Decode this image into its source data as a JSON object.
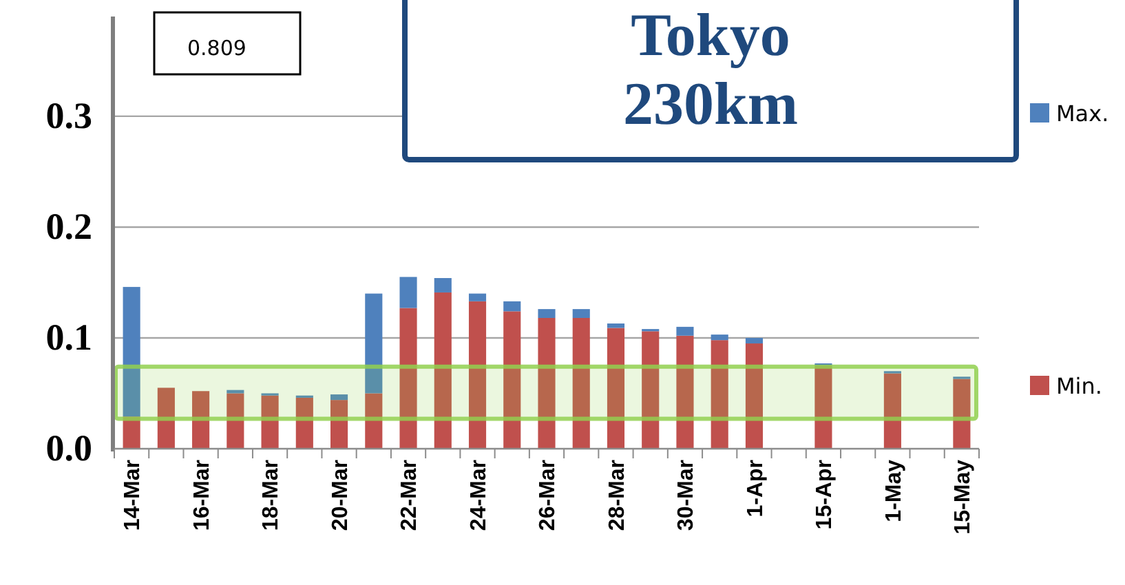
{
  "chart_data": {
    "type": "bar",
    "title": "Tokyo\n230km",
    "categories": [
      "14-Mar",
      null,
      "16-Mar",
      null,
      "18-Mar",
      null,
      "20-Mar",
      null,
      "22-Mar",
      null,
      "24-Mar",
      null,
      "26-Mar",
      null,
      "28-Mar",
      null,
      "30-Mar",
      null,
      "1-Apr",
      null,
      "15-Apr",
      null,
      "1-May",
      null,
      "15-May"
    ],
    "series": [
      {
        "name": "Min.",
        "color": "#c0504d",
        "values": [
          0.029,
          0.055,
          0.052,
          0.05,
          0.048,
          0.046,
          0.044,
          0.05,
          0.127,
          0.141,
          0.133,
          0.124,
          0.118,
          0.118,
          0.109,
          0.106,
          0.102,
          0.098,
          0.095,
          null,
          0.075,
          null,
          0.068,
          null,
          0.063
        ]
      },
      {
        "name": "Max.",
        "color": "#4f81bd",
        "values": [
          0.117,
          null,
          null,
          0.003,
          0.002,
          0.002,
          0.005,
          0.09,
          0.028,
          0.013,
          0.007,
          0.009,
          0.008,
          0.008,
          0.004,
          0.002,
          0.008,
          0.005,
          0.005,
          null,
          0.002,
          null,
          0.002,
          null,
          0.002
        ]
      }
    ],
    "stacked": true,
    "ylim": [
      0,
      0.39
    ],
    "yticks": [
      {
        "value": 0,
        "label": "0.0"
      },
      0.1,
      0.2,
      0.3
    ],
    "grid": "y",
    "legend": "right",
    "bands": [
      {
        "axis": "y",
        "from": 0.027,
        "to": 0.074,
        "color": "#92d050"
      }
    ],
    "annotations": [
      "0.809"
    ]
  }
}
